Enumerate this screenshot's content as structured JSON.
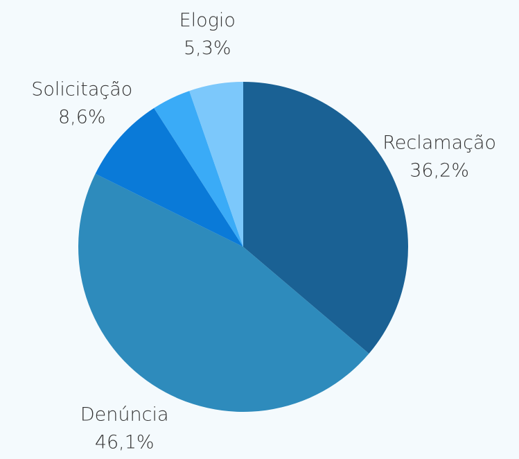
{
  "chart_data": {
    "type": "pie",
    "categories": [
      "Reclamação",
      "Denúncia",
      "Solicitação",
      null,
      "Elogio"
    ],
    "values": [
      36.2,
      46.1,
      8.6,
      3.8,
      5.3
    ],
    "value_labels": [
      "36,2%",
      "46,1%",
      "8,6%",
      null,
      "5,3%"
    ],
    "colors": [
      "#1a6194",
      "#2e8bbc",
      "#0a7ad8",
      "#3aabf7",
      "#7cc8fb"
    ]
  }
}
